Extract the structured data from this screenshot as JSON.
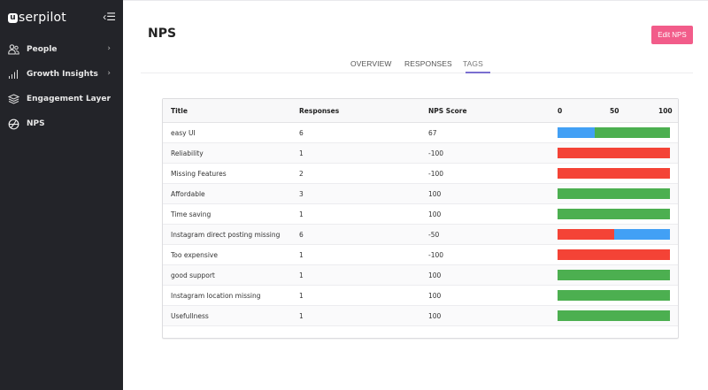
{
  "sidebar": {
    "logo": {
      "badge": "u",
      "text": "serpilot"
    },
    "collapse_icon": "‹☰",
    "items": [
      {
        "label": "People",
        "icon": "people-icon",
        "has_chevron": true,
        "chevron": "›"
      },
      {
        "label": "Growth Insights",
        "icon": "bar-chart-icon",
        "has_chevron": true,
        "chevron": "›"
      },
      {
        "label": "Engagement Layer",
        "icon": "layers-icon",
        "has_chevron": true,
        "chevron": "›"
      },
      {
        "label": "NPS",
        "icon": "gauge-icon",
        "has_chevron": false,
        "active": true
      }
    ]
  },
  "header": {
    "title": "NPS",
    "edit_button": "Edit NPS"
  },
  "tabs": [
    {
      "label": "OVERVIEW",
      "active": false
    },
    {
      "label": "RESPONSES",
      "active": false
    },
    {
      "label": "TAGS",
      "active": true
    }
  ],
  "table": {
    "columns": [
      "Title",
      "Responses",
      "NPS Score"
    ],
    "scale": [
      "0",
      "50",
      "100"
    ],
    "colors": {
      "detractor": "#f44336",
      "passive": "#42a0f5",
      "promoter": "#4caf50"
    },
    "rows": [
      {
        "title": "easy UI",
        "responses": "6",
        "nps": "67",
        "bar": [
          {
            "type": "passive",
            "pct": 33
          },
          {
            "type": "promoter",
            "pct": 67
          }
        ]
      },
      {
        "title": "Reliability",
        "responses": "1",
        "nps": "-100",
        "bar": [
          {
            "type": "detractor",
            "pct": 100
          }
        ]
      },
      {
        "title": "Missing Features",
        "responses": "2",
        "nps": "-100",
        "bar": [
          {
            "type": "detractor",
            "pct": 100
          }
        ]
      },
      {
        "title": "Affordable",
        "responses": "3",
        "nps": "100",
        "bar": [
          {
            "type": "promoter",
            "pct": 100
          }
        ]
      },
      {
        "title": "Time saving",
        "responses": "1",
        "nps": "100",
        "bar": [
          {
            "type": "promoter",
            "pct": 100
          }
        ]
      },
      {
        "title": "Instagram direct posting missing",
        "responses": "6",
        "nps": "-50",
        "bar": [
          {
            "type": "detractor",
            "pct": 50
          },
          {
            "type": "passive",
            "pct": 50
          }
        ]
      },
      {
        "title": "Too expensive",
        "responses": "1",
        "nps": "-100",
        "bar": [
          {
            "type": "detractor",
            "pct": 100
          }
        ]
      },
      {
        "title": "good support",
        "responses": "1",
        "nps": "100",
        "bar": [
          {
            "type": "promoter",
            "pct": 100
          }
        ]
      },
      {
        "title": "Instagram location missing",
        "responses": "1",
        "nps": "100",
        "bar": [
          {
            "type": "promoter",
            "pct": 100
          }
        ]
      },
      {
        "title": "Usefullness",
        "responses": "1",
        "nps": "100",
        "bar": [
          {
            "type": "promoter",
            "pct": 100
          }
        ]
      }
    ]
  }
}
